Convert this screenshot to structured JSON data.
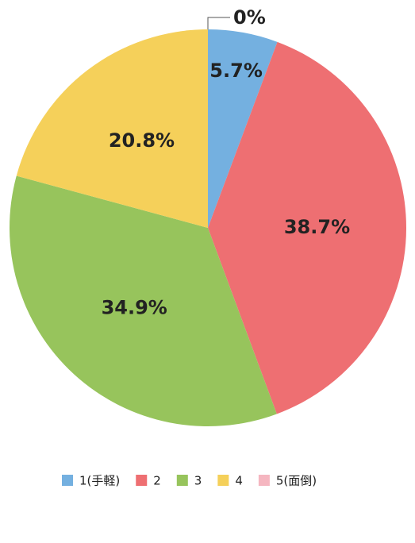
{
  "chart_data": {
    "type": "pie",
    "categories": [
      "1(手軽)",
      "2",
      "3",
      "4",
      "5(面倒)"
    ],
    "values": [
      5.7,
      38.7,
      34.9,
      20.8,
      0
    ],
    "value_labels": [
      "5.7%",
      "38.7%",
      "34.9%",
      "20.8%",
      "0%"
    ],
    "colors": [
      "#74b0e0",
      "#ee6f72",
      "#97c45c",
      "#f5d05a",
      "#f5b6c0"
    ]
  }
}
